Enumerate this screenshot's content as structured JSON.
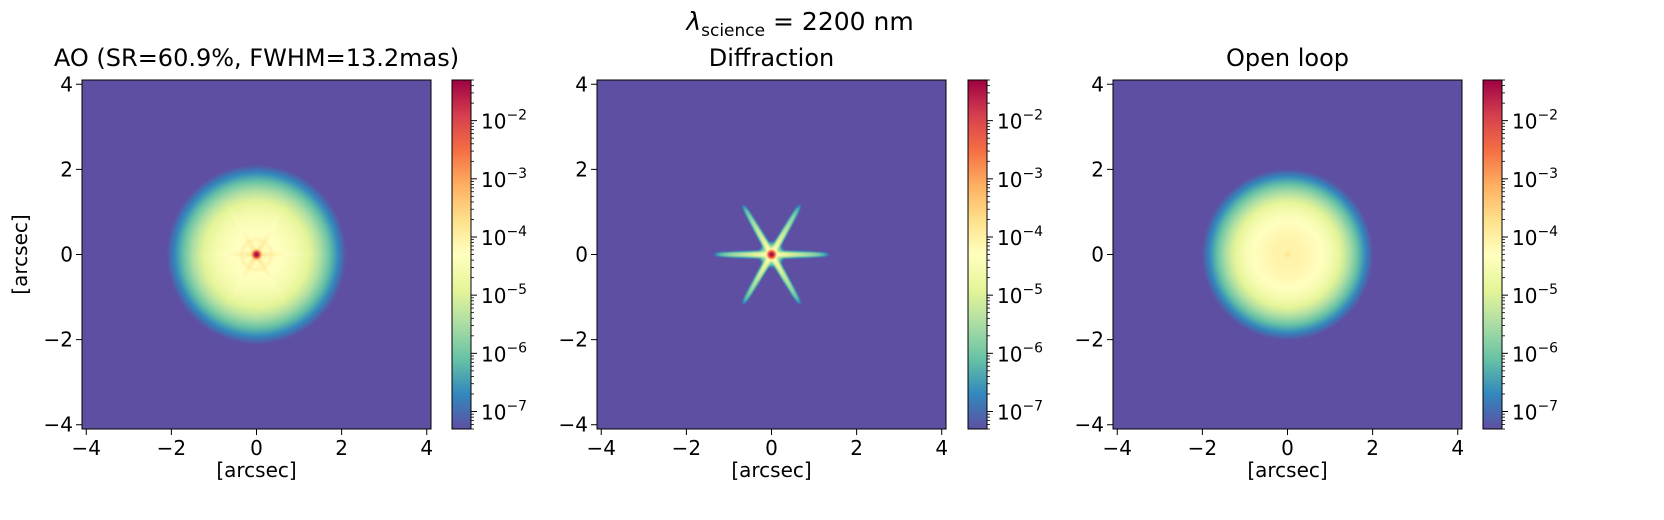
{
  "figure": {
    "suptitle_symbol": "λ",
    "suptitle_subscript": "science",
    "suptitle_value": " = 2200 nm"
  },
  "colormap": {
    "name": "Spectral_r",
    "stops": [
      "#5e4fa2",
      "#3288bd",
      "#66c2a5",
      "#abdda4",
      "#e6f598",
      "#ffffbf",
      "#fee08b",
      "#fdae61",
      "#f46d43",
      "#d53e4f",
      "#9e0142"
    ]
  },
  "chart_data": [
    {
      "type": "heatmap",
      "title": "AO (SR=60.9%, FWHM=13.2mas)",
      "xlabel": "[arcsec]",
      "ylabel": "[arcsec]",
      "xlim": [
        -4.1,
        4.1
      ],
      "ylim": [
        -4.1,
        4.1
      ],
      "xticks": [
        -4,
        -2,
        0,
        2,
        4
      ],
      "yticks": [
        -4,
        -2,
        0,
        2,
        4
      ],
      "xticklabels": [
        "−4",
        "−2",
        "0",
        "2",
        "4"
      ],
      "yticklabels": [
        "−4",
        "−2",
        "0",
        "2",
        "4"
      ],
      "color_scale": "log",
      "clim": [
        5e-08,
        0.05
      ],
      "colorbar_ticks": [
        "10",
        "10",
        "10",
        "10",
        "10",
        "10"
      ],
      "colorbar_exponents": [
        "−2",
        "−3",
        "−4",
        "−5",
        "−6",
        "−7"
      ],
      "colorbar_values": [
        0.01,
        0.001,
        0.0001,
        1e-05,
        1e-06,
        1e-07
      ],
      "psf": {
        "peak": 0.05,
        "halo_radius_arcsec": 1.4,
        "halo_level": 2e-05,
        "spike_length_arcsec": 1.45,
        "spike_level": 3e-05,
        "ring_radius_arcsec": 0.35
      }
    },
    {
      "type": "heatmap",
      "title": "Diffraction",
      "xlabel": "[arcsec]",
      "ylabel": "",
      "xlim": [
        -4.1,
        4.1
      ],
      "ylim": [
        -4.1,
        4.1
      ],
      "xticks": [
        -4,
        -2,
        0,
        2,
        4
      ],
      "yticks": [
        -4,
        -2,
        0,
        2,
        4
      ],
      "xticklabels": [
        "−4",
        "−2",
        "0",
        "2",
        "4"
      ],
      "yticklabels": [
        "−4",
        "−2",
        "0",
        "2",
        "4"
      ],
      "color_scale": "log",
      "clim": [
        5e-08,
        0.05
      ],
      "colorbar_ticks": [
        "10",
        "10",
        "10",
        "10",
        "10",
        "10"
      ],
      "colorbar_exponents": [
        "−2",
        "−3",
        "−4",
        "−5",
        "−6",
        "−7"
      ],
      "colorbar_values": [
        0.01,
        0.001,
        0.0001,
        1e-05,
        1e-06,
        1e-07
      ],
      "psf": {
        "peak": 0.05,
        "halo_radius_arcsec": 0.25,
        "halo_level": 2e-06,
        "spike_length_arcsec": 1.4,
        "spike_level": 1.2e-05,
        "ring_radius_arcsec": 0.0
      }
    },
    {
      "type": "heatmap",
      "title": "Open loop",
      "xlabel": "[arcsec]",
      "ylabel": "",
      "xlim": [
        -4.1,
        4.1
      ],
      "ylim": [
        -4.1,
        4.1
      ],
      "xticks": [
        -4,
        -2,
        0,
        2,
        4
      ],
      "yticks": [
        -4,
        -2,
        0,
        2,
        4
      ],
      "xticklabels": [
        "−4",
        "−2",
        "0",
        "2",
        "4"
      ],
      "yticklabels": [
        "−4",
        "−2",
        "0",
        "2",
        "4"
      ],
      "color_scale": "log",
      "clim": [
        5e-08,
        0.05
      ],
      "colorbar_ticks": [
        "10",
        "10",
        "10",
        "10",
        "10",
        "10"
      ],
      "colorbar_exponents": [
        "−2",
        "−3",
        "−4",
        "−5",
        "−6",
        "−7"
      ],
      "colorbar_values": [
        0.01,
        0.001,
        0.0001,
        1e-05,
        1e-06,
        1e-07
      ],
      "psf": {
        "peak": 8e-05,
        "halo_radius_arcsec": 1.3,
        "halo_level": 3e-05,
        "spike_length_arcsec": 0,
        "spike_level": 0,
        "ring_radius_arcsec": 0.0
      }
    }
  ]
}
